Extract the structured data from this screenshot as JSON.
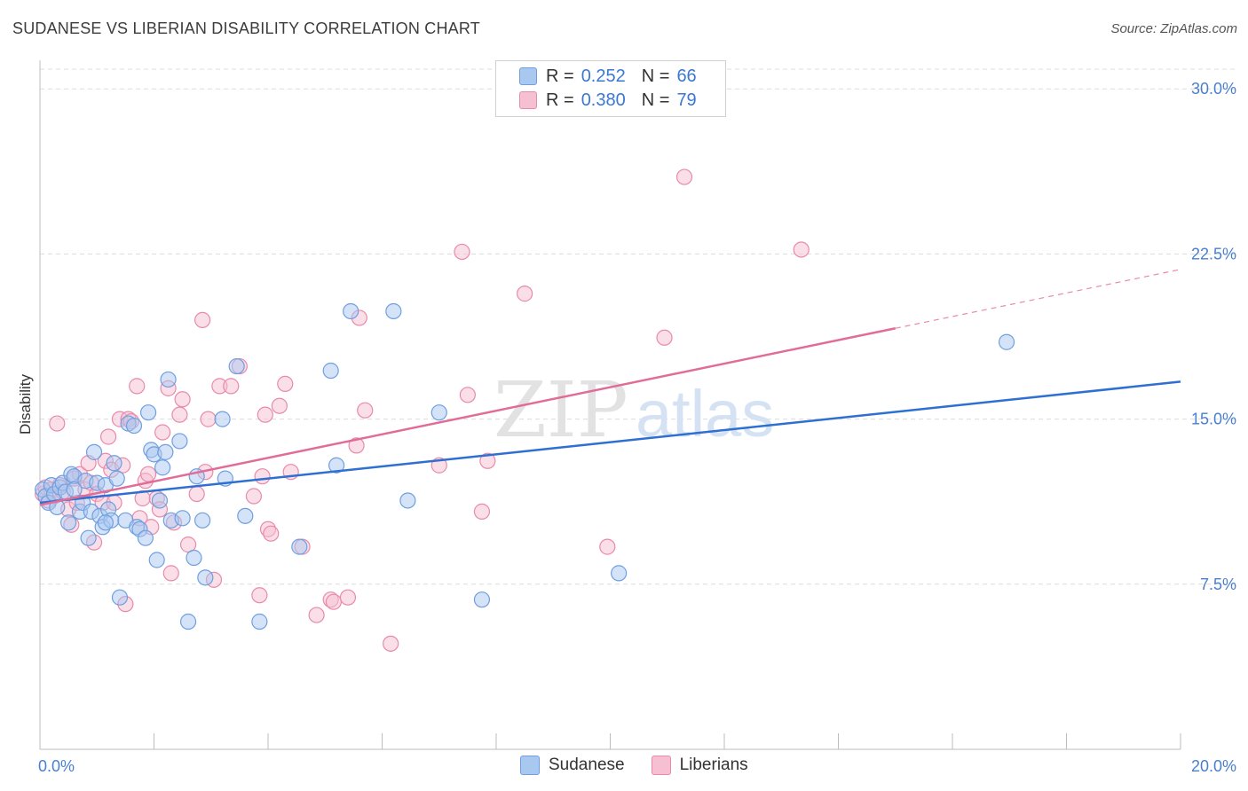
{
  "title": "SUDANESE VS LIBERIAN DISABILITY CORRELATION CHART",
  "source": "Source: ZipAtlas.com",
  "watermark": {
    "zip": "ZIP",
    "atlas": "atlas"
  },
  "legend_top": [
    {
      "r_label": "R =",
      "r_value": "0.252",
      "n_label": "N =",
      "n_value": "66",
      "color": "#a9c8f0",
      "border": "#6f9fe0"
    },
    {
      "r_label": "R =",
      "r_value": "0.380",
      "n_label": "N =",
      "n_value": "79",
      "color": "#f6bfd2",
      "border": "#e88aab"
    }
  ],
  "legend_bottom": [
    {
      "label": "Sudanese",
      "color": "#a9c8f0",
      "border": "#6f9fe0"
    },
    {
      "label": "Liberians",
      "color": "#f6bfd2",
      "border": "#e88aab"
    }
  ],
  "chart_data": {
    "type": "scatter",
    "title": "SUDANESE VS LIBERIAN DISABILITY CORRELATION CHART",
    "xlabel": "",
    "ylabel": "Disability",
    "xlim": [
      0,
      20
    ],
    "ylim": [
      0,
      31.5
    ],
    "x_tick_labels": [
      {
        "value": 0,
        "label": "0.0%"
      },
      {
        "value": 20,
        "label": "20.0%"
      }
    ],
    "y_tick_labels": [
      {
        "value": 7.5,
        "label": "7.5%"
      },
      {
        "value": 15,
        "label": "15.0%"
      },
      {
        "value": 22.5,
        "label": "22.5%"
      },
      {
        "value": 30,
        "label": "30.0%"
      }
    ],
    "grid": true,
    "legend_position": "top-center",
    "series": [
      {
        "name": "Sudanese",
        "color": "#6f9fe0",
        "fill": "#a9c8f0",
        "trend": {
          "x": [
            0,
            20
          ],
          "y": [
            11.2,
            16.7
          ],
          "dashed_from": null
        },
        "points": [
          [
            0.05,
            11.8
          ],
          [
            0.1,
            11.5
          ],
          [
            0.15,
            11.2
          ],
          [
            0.2,
            12.0
          ],
          [
            0.25,
            11.6
          ],
          [
            0.3,
            11.0
          ],
          [
            0.35,
            11.9
          ],
          [
            0.4,
            12.1
          ],
          [
            0.45,
            11.7
          ],
          [
            0.5,
            10.3
          ],
          [
            0.55,
            12.5
          ],
          [
            0.6,
            12.4
          ],
          [
            0.7,
            10.8
          ],
          [
            0.75,
            11.2
          ],
          [
            0.8,
            12.2
          ],
          [
            0.85,
            9.6
          ],
          [
            0.9,
            10.8
          ],
          [
            0.95,
            13.5
          ],
          [
            1.0,
            12.1
          ],
          [
            1.05,
            10.6
          ],
          [
            1.1,
            10.1
          ],
          [
            1.15,
            12.0
          ],
          [
            1.2,
            10.9
          ],
          [
            1.25,
            10.4
          ],
          [
            1.3,
            13.0
          ],
          [
            1.35,
            12.3
          ],
          [
            1.4,
            6.9
          ],
          [
            1.5,
            10.4
          ],
          [
            1.55,
            14.8
          ],
          [
            1.65,
            14.7
          ],
          [
            1.7,
            10.1
          ],
          [
            1.75,
            10.0
          ],
          [
            1.85,
            9.6
          ],
          [
            1.9,
            15.3
          ],
          [
            1.95,
            13.6
          ],
          [
            2.0,
            13.4
          ],
          [
            2.05,
            8.6
          ],
          [
            2.1,
            11.3
          ],
          [
            2.15,
            12.8
          ],
          [
            2.2,
            13.5
          ],
          [
            2.25,
            16.8
          ],
          [
            2.3,
            10.4
          ],
          [
            2.45,
            14.0
          ],
          [
            2.5,
            10.5
          ],
          [
            2.6,
            5.8
          ],
          [
            2.7,
            8.7
          ],
          [
            2.75,
            12.4
          ],
          [
            2.85,
            10.4
          ],
          [
            2.9,
            7.8
          ],
          [
            3.2,
            15.0
          ],
          [
            3.25,
            12.3
          ],
          [
            3.45,
            17.4
          ],
          [
            3.6,
            10.6
          ],
          [
            3.85,
            5.8
          ],
          [
            4.55,
            9.2
          ],
          [
            5.1,
            17.2
          ],
          [
            5.2,
            12.9
          ],
          [
            5.45,
            19.9
          ],
          [
            6.2,
            19.9
          ],
          [
            6.45,
            11.3
          ],
          [
            7.0,
            15.3
          ],
          [
            7.75,
            6.8
          ],
          [
            10.15,
            8.0
          ],
          [
            16.95,
            18.5
          ],
          [
            0.6,
            11.8
          ],
          [
            1.15,
            10.3
          ]
        ]
      },
      {
        "name": "Liberians",
        "color": "#e88aab",
        "fill": "#f6bfd2",
        "trend": {
          "x": [
            0,
            20
          ],
          "y": [
            11.1,
            21.8
          ],
          "dashed_from": 15.0
        },
        "points": [
          [
            0.05,
            11.6
          ],
          [
            0.1,
            11.9
          ],
          [
            0.15,
            11.3
          ],
          [
            0.2,
            11.8
          ],
          [
            0.25,
            11.5
          ],
          [
            0.3,
            14.8
          ],
          [
            0.35,
            12.0
          ],
          [
            0.4,
            11.7
          ],
          [
            0.5,
            10.9
          ],
          [
            0.55,
            10.2
          ],
          [
            0.6,
            12.3
          ],
          [
            0.65,
            11.2
          ],
          [
            0.7,
            12.5
          ],
          [
            0.8,
            11.8
          ],
          [
            0.85,
            13.0
          ],
          [
            0.9,
            12.1
          ],
          [
            0.95,
            9.4
          ],
          [
            1.0,
            11.6
          ],
          [
            1.1,
            11.2
          ],
          [
            1.15,
            13.1
          ],
          [
            1.2,
            14.2
          ],
          [
            1.25,
            12.7
          ],
          [
            1.3,
            11.2
          ],
          [
            1.4,
            15.0
          ],
          [
            1.45,
            12.9
          ],
          [
            1.5,
            6.6
          ],
          [
            1.55,
            15.0
          ],
          [
            1.6,
            14.9
          ],
          [
            1.7,
            16.5
          ],
          [
            1.75,
            10.5
          ],
          [
            1.8,
            11.4
          ],
          [
            1.85,
            12.2
          ],
          [
            1.9,
            12.5
          ],
          [
            1.95,
            10.1
          ],
          [
            2.05,
            11.4
          ],
          [
            2.1,
            10.9
          ],
          [
            2.15,
            14.4
          ],
          [
            2.25,
            16.4
          ],
          [
            2.3,
            8.0
          ],
          [
            2.35,
            10.3
          ],
          [
            2.45,
            15.2
          ],
          [
            2.5,
            15.9
          ],
          [
            2.6,
            9.3
          ],
          [
            2.75,
            11.6
          ],
          [
            2.85,
            19.5
          ],
          [
            2.9,
            12.6
          ],
          [
            2.95,
            15.0
          ],
          [
            3.05,
            7.7
          ],
          [
            3.15,
            16.5
          ],
          [
            3.35,
            16.5
          ],
          [
            3.5,
            17.4
          ],
          [
            3.75,
            11.5
          ],
          [
            3.85,
            7.0
          ],
          [
            3.9,
            12.4
          ],
          [
            3.95,
            15.2
          ],
          [
            4.0,
            10.0
          ],
          [
            4.05,
            9.8
          ],
          [
            4.2,
            15.6
          ],
          [
            4.3,
            16.6
          ],
          [
            4.4,
            12.6
          ],
          [
            4.6,
            9.2
          ],
          [
            4.85,
            6.1
          ],
          [
            5.1,
            6.8
          ],
          [
            5.15,
            6.7
          ],
          [
            5.4,
            6.9
          ],
          [
            5.55,
            13.8
          ],
          [
            5.6,
            19.6
          ],
          [
            5.7,
            15.4
          ],
          [
            6.15,
            4.8
          ],
          [
            7.0,
            12.9
          ],
          [
            7.4,
            22.6
          ],
          [
            7.5,
            16.1
          ],
          [
            7.75,
            10.8
          ],
          [
            7.85,
            13.1
          ],
          [
            8.5,
            20.7
          ],
          [
            9.95,
            9.2
          ],
          [
            10.95,
            18.7
          ],
          [
            11.3,
            26.0
          ],
          [
            13.35,
            22.7
          ]
        ]
      }
    ]
  }
}
